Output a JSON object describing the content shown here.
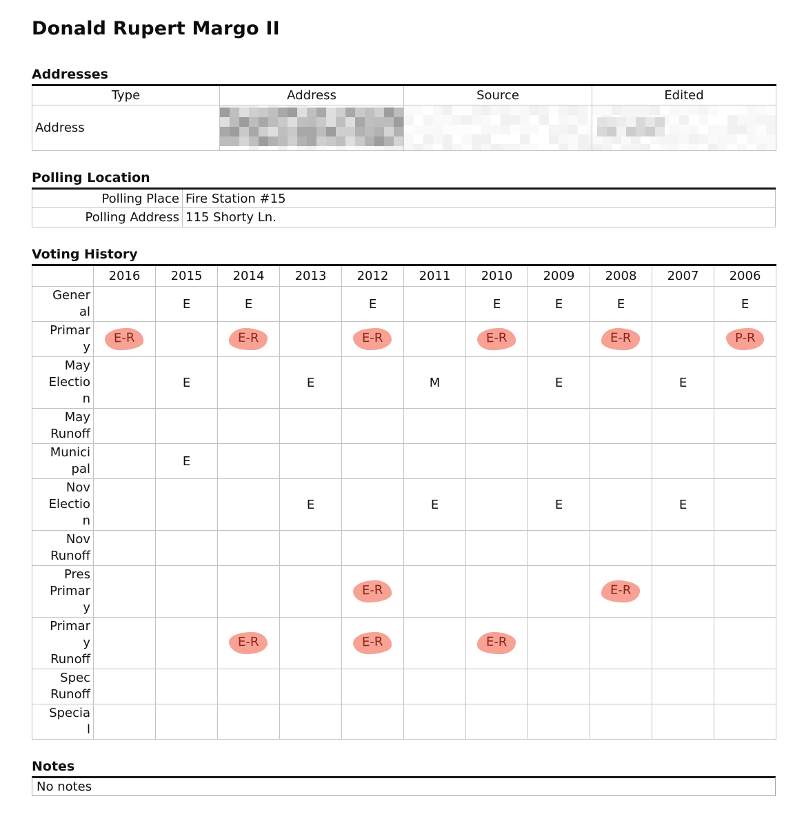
{
  "title": "Donald Rupert Margo II",
  "colors": {
    "highlight_bg": "#f7a295",
    "highlight_text": "#8c2318",
    "table_top_border": "#161616",
    "grid_line": "#c3c3c3"
  },
  "addresses": {
    "heading": "Addresses",
    "columns": [
      "Type",
      "Address",
      "Source",
      "Edited"
    ],
    "rows": [
      {
        "type": "Address",
        "address": "",
        "address_redacted": true,
        "source": "",
        "edited": "",
        "edited_redacted": true
      }
    ]
  },
  "polling": {
    "heading": "Polling Location",
    "rows": [
      {
        "label": "Polling Place",
        "value": "Fire Station #15"
      },
      {
        "label": "Polling Address",
        "value": "115 Shorty Ln."
      }
    ]
  },
  "voting_history": {
    "heading": "Voting History",
    "years": [
      "2016",
      "2015",
      "2014",
      "2013",
      "2012",
      "2011",
      "2010",
      "2009",
      "2008",
      "2007",
      "2006"
    ],
    "rows": [
      {
        "label": "General",
        "display": "Gener\nal",
        "lines": 2,
        "cells": [
          null,
          "E",
          "E",
          null,
          "E",
          null,
          "E",
          "E",
          "E",
          null,
          "E"
        ]
      },
      {
        "label": "Primary",
        "display": "Primar\ny",
        "lines": 2,
        "cells": [
          {
            "text": "E-R",
            "highlight": true
          },
          null,
          {
            "text": "E-R",
            "highlight": true
          },
          null,
          {
            "text": "E-R",
            "highlight": true
          },
          null,
          {
            "text": "E-R",
            "highlight": true
          },
          null,
          {
            "text": "E-R",
            "highlight": true
          },
          null,
          {
            "text": "P-R",
            "highlight": true
          }
        ]
      },
      {
        "label": "May Election",
        "display": "May\nElectio\nn",
        "lines": 3,
        "cells": [
          null,
          "E",
          null,
          "E",
          null,
          "M",
          null,
          "E",
          null,
          "E",
          null
        ]
      },
      {
        "label": "May Runoff",
        "display": "May\nRunoff",
        "lines": 2,
        "cells": [
          null,
          null,
          null,
          null,
          null,
          null,
          null,
          null,
          null,
          null,
          null
        ]
      },
      {
        "label": "Municipal",
        "display": "Munici\npal",
        "lines": 2,
        "cells": [
          null,
          "E",
          null,
          null,
          null,
          null,
          null,
          null,
          null,
          null,
          null
        ]
      },
      {
        "label": "Nov Election",
        "display": "Nov\nElectio\nn",
        "lines": 3,
        "cells": [
          null,
          null,
          null,
          "E",
          null,
          "E",
          null,
          "E",
          null,
          "E",
          null
        ]
      },
      {
        "label": "Nov Runoff",
        "display": "Nov\nRunoff",
        "lines": 2,
        "cells": [
          null,
          null,
          null,
          null,
          null,
          null,
          null,
          null,
          null,
          null,
          null
        ]
      },
      {
        "label": "Pres Primary",
        "display": "Pres\nPrimar\ny",
        "lines": 3,
        "cells": [
          null,
          null,
          null,
          null,
          {
            "text": "E-R",
            "highlight": true
          },
          null,
          null,
          null,
          {
            "text": "E-R",
            "highlight": true
          },
          null,
          null
        ]
      },
      {
        "label": "Primary Runoff",
        "display": "Primar\ny\nRunoff",
        "lines": 3,
        "cells": [
          null,
          null,
          {
            "text": "E-R",
            "highlight": true
          },
          null,
          {
            "text": "E-R",
            "highlight": true
          },
          null,
          {
            "text": "E-R",
            "highlight": true
          },
          null,
          null,
          null,
          null
        ]
      },
      {
        "label": "Spec Runoff",
        "display": "Spec\nRunoff",
        "lines": 2,
        "cells": [
          null,
          null,
          null,
          null,
          null,
          null,
          null,
          null,
          null,
          null,
          null
        ]
      },
      {
        "label": "Special",
        "display": "Specia\nl",
        "lines": 2,
        "cells": [
          null,
          null,
          null,
          null,
          null,
          null,
          null,
          null,
          null,
          null,
          null
        ]
      }
    ]
  },
  "notes": {
    "heading": "Notes",
    "value": "No notes"
  }
}
